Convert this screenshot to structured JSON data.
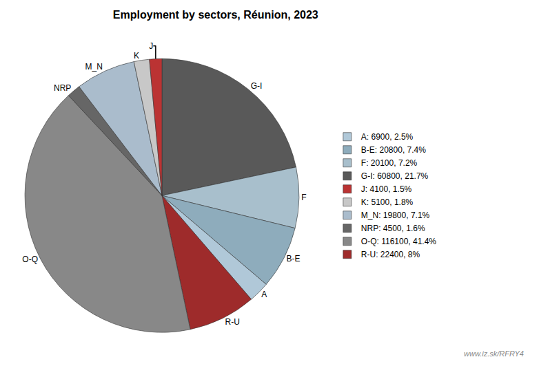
{
  "chart_data": {
    "type": "pie",
    "title": "Employment by sectors, Réunion, 2023",
    "categories": [
      "G-I",
      "F",
      "B-E",
      "A",
      "R-U",
      "O-Q",
      "NRP",
      "M_N",
      "K",
      "J"
    ],
    "values": [
      60800,
      20100,
      20800,
      6900,
      22400,
      116100,
      4500,
      19800,
      5100,
      4100
    ],
    "colors": [
      "#595959",
      "#a8bfcc",
      "#8eacbc",
      "#b0c8d8",
      "#9e2b2b",
      "#888888",
      "#666666",
      "#aabccc",
      "#c8c8c8",
      "#bb3333"
    ],
    "legend_labels": [
      "A: 6900, 2.5%",
      "B-E: 20800, 7.4%",
      "F: 20100, 7.2%",
      "G-I: 60800, 21.7%",
      "J: 4100, 1.5%",
      "K: 5100, 1.8%",
      "M_N: 19800, 7.1%",
      "NRP: 4500, 1.6%",
      "O-Q: 116100, 41.4%",
      "R-U: 22400, 8%"
    ],
    "legend_colors": [
      "#b0c8d8",
      "#8eacbc",
      "#a8bfcc",
      "#595959",
      "#bb3333",
      "#c8c8c8",
      "#aabccc",
      "#666666",
      "#888888",
      "#9e2b2b"
    ],
    "annotations": [
      "www.iz.sk/RFRY4"
    ],
    "legend": "right"
  }
}
